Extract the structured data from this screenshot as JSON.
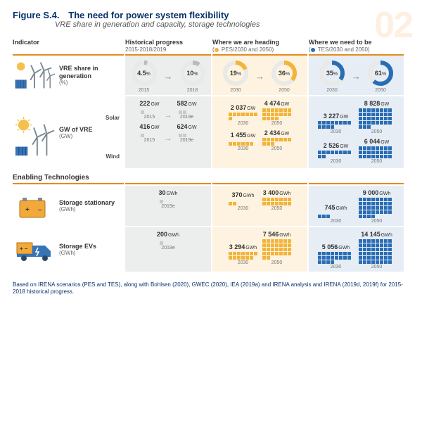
{
  "figure_label": "Figure S.4.",
  "figure_title": "The need for power system flexibility",
  "subtitle": "VRE share in generation and capacity, storage technologies",
  "chapter_number": "02",
  "columns": {
    "c0": "Indicator",
    "c1": "Historical progress",
    "c1_sub": "2015-2018/2019",
    "c2": "Where we are heading",
    "c2_sub": "PES/2030 and 2050)",
    "c2_bullet_color": "#f2b43a",
    "c3": "Where we need to be",
    "c3_sub": "TES/2030 and 2050)",
    "c3_bullet_color": "#2a6db5"
  },
  "donut_colors": {
    "grey": "#b9bab9",
    "yel": "#f2b43a",
    "blu": "#2a6db5",
    "track": "#e9e9e7"
  },
  "rows": {
    "vre_share": {
      "label": "VRE share in generation",
      "unit": "(%)",
      "hist": {
        "a": {
          "pct": 4.5,
          "yr": "2015"
        },
        "b": {
          "pct": 10,
          "yr": "2018"
        }
      },
      "pes": {
        "a": {
          "pct": 19,
          "yr": "2030"
        },
        "b": {
          "pct": 36,
          "yr": "2050"
        }
      },
      "tes": {
        "a": {
          "pct": 35,
          "yr": "2030"
        },
        "b": {
          "pct": 61,
          "yr": "2050"
        }
      }
    },
    "gw_vre": {
      "label": "GW of VRE",
      "unit": "(GW)",
      "solar_label": "Solar",
      "wind_label": "Wind",
      "unit_gw": "GW",
      "solar": {
        "hist": {
          "a": {
            "v": 222,
            "yr": "2015",
            "blocks": 1
          },
          "b": {
            "v": 582,
            "yr": "2019e",
            "blocks": 2
          }
        },
        "pes": {
          "a": {
            "v": "2 037",
            "yr": "2030",
            "blocks": 8
          },
          "b": {
            "v": "4 474",
            "yr": "2050",
            "blocks": 18
          }
        },
        "tes": {
          "a": {
            "v": "3 227",
            "yr": "2030",
            "blocks": 12
          },
          "b": {
            "v": "8 828",
            "yr": "2050",
            "blocks": 35
          }
        }
      },
      "wind": {
        "hist": {
          "a": {
            "v": 416,
            "yr": "2015",
            "blocks": 1
          },
          "b": {
            "v": 624,
            "yr": "2019e",
            "blocks": 2
          }
        },
        "pes": {
          "a": {
            "v": "1 455",
            "yr": "2030",
            "blocks": 6
          },
          "b": {
            "v": "2 434",
            "yr": "2050",
            "blocks": 10
          }
        },
        "tes": {
          "a": {
            "v": "2 526",
            "yr": "2030",
            "blocks": 10
          },
          "b": {
            "v": "6 044",
            "yr": "2050",
            "blocks": 24
          }
        }
      }
    },
    "enabling_label": "Enabling Technologies",
    "storage_stat": {
      "label": "Storage stationary",
      "unit": "(GWh)",
      "u": "GWh",
      "hist": {
        "a": {
          "v": 30,
          "yr": "2019e",
          "blocks": 1
        }
      },
      "pes": {
        "a": {
          "v": 370,
          "yr": "2030",
          "blocks": 2
        },
        "b": {
          "v": "3 400",
          "yr": "2050",
          "blocks": 14
        }
      },
      "tes": {
        "a": {
          "v": 745,
          "yr": "2030",
          "blocks": 3
        },
        "b": {
          "v": "9 000",
          "yr": "2050",
          "blocks": 36
        }
      }
    },
    "storage_ev": {
      "label": "Storage EVs",
      "unit": "(GWh)",
      "u": "GWh",
      "hist": {
        "a": {
          "v": 200,
          "yr": "2019e",
          "blocks": 1
        }
      },
      "pes": {
        "a": {
          "v": "3 294",
          "yr": "2030",
          "blocks": 13
        },
        "b": {
          "v": "7 546",
          "yr": "2050",
          "blocks": 30
        }
      },
      "tes": {
        "a": {
          "v": "5 056",
          "yr": "2030",
          "blocks": 20
        },
        "b": {
          "v": "14 145",
          "yr": "2050",
          "blocks": 48
        }
      }
    }
  },
  "footnote": "Based on IRENA scenarios (PES and TES), along with Bohlsen (2020), GWEC (2020), IEA (2019a) and IRENA analysis and IRENA (2019d, 2019f) for 2015-2018 historical progress."
}
